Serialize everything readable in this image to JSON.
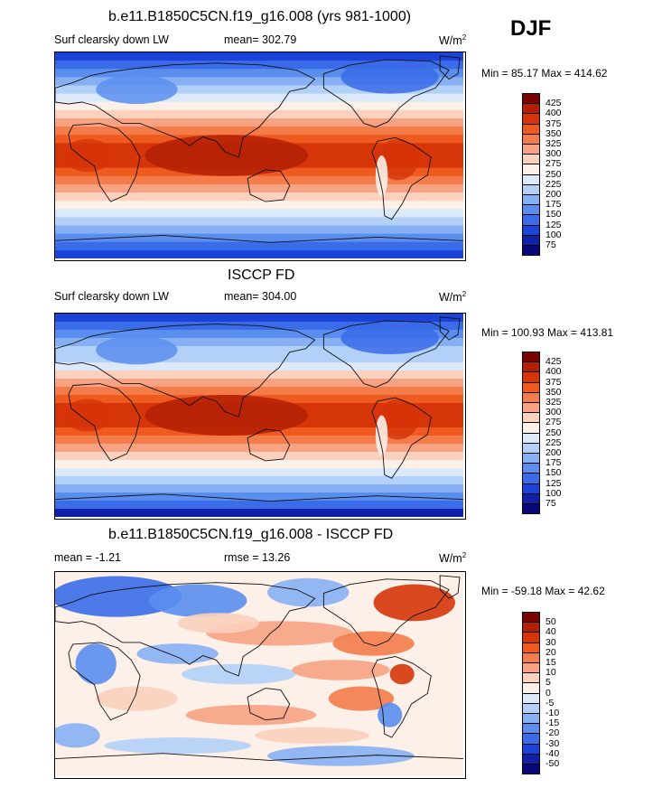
{
  "season": "DJF",
  "panels": [
    {
      "title": "b.e11.B1850C5CN.f19_g16.008 (yrs 981-1000)",
      "left_label": "Surf clearsky down LW",
      "center_label": "mean= 302.79",
      "units": "W/m",
      "units_exp": "2",
      "minmax": "Min =  85.17 Max = 414.62",
      "colorbar_labels": [
        "425",
        "400",
        "375",
        "350",
        "325",
        "300",
        "275",
        "250",
        "225",
        "200",
        "175",
        "150",
        "125",
        "100",
        "75"
      ]
    },
    {
      "title": "ISCCP FD",
      "left_label": "Surf clearsky down LW",
      "center_label": "mean= 304.00",
      "units": "W/m",
      "units_exp": "2",
      "minmax": "Min = 100.93 Max = 413.81",
      "colorbar_labels": [
        "425",
        "400",
        "375",
        "350",
        "325",
        "300",
        "275",
        "250",
        "225",
        "200",
        "175",
        "150",
        "125",
        "100",
        "75"
      ]
    },
    {
      "title": "b.e11.B1850C5CN.f19_g16.008 - ISCCP FD",
      "left_label": "mean =  -1.21",
      "center_label": "rmse =  13.26",
      "units": "W/m",
      "units_exp": "2",
      "minmax": "Min = -59.18 Max =  42.62",
      "colorbar_labels": [
        "50",
        "40",
        "30",
        "20",
        "15",
        "10",
        "5",
        "0",
        "-5",
        "-10",
        "-15",
        "-20",
        "-30",
        "-40",
        "-50"
      ]
    }
  ],
  "colorbar_colors": [
    "#7a0403",
    "#b31e05",
    "#d63509",
    "#ef5a1e",
    "#f47c4a",
    "#f7a283",
    "#fbd0bc",
    "#fdf0e8",
    "#dbe9fb",
    "#b2d0f8",
    "#86b0f3",
    "#5a8eee",
    "#3a6be9",
    "#1c43d8",
    "#1020a8",
    "#08087a"
  ],
  "chart_data": [
    {
      "type": "heatmap",
      "title": "b.e11.B1850C5CN.f19_g16.008 (yrs 981-1000)",
      "variable": "Surf clearsky down LW",
      "season": "DJF",
      "units": "W/m2",
      "mean": 302.79,
      "min": 85.17,
      "max": 414.62,
      "levels": [
        75,
        100,
        125,
        150,
        175,
        200,
        225,
        250,
        275,
        300,
        325,
        350,
        375,
        400,
        425
      ]
    },
    {
      "type": "heatmap",
      "title": "ISCCP FD",
      "variable": "Surf clearsky down LW",
      "season": "DJF",
      "units": "W/m2",
      "mean": 304.0,
      "min": 100.93,
      "max": 413.81,
      "levels": [
        75,
        100,
        125,
        150,
        175,
        200,
        225,
        250,
        275,
        300,
        325,
        350,
        375,
        400,
        425
      ]
    },
    {
      "type": "heatmap",
      "title": "b.e11.B1850C5CN.f19_g16.008 - ISCCP FD",
      "variable": "Surf clearsky down LW difference",
      "season": "DJF",
      "units": "W/m2",
      "mean": -1.21,
      "rmse": 13.26,
      "min": -59.18,
      "max": 42.62,
      "levels": [
        -50,
        -40,
        -30,
        -20,
        -15,
        -10,
        -5,
        0,
        5,
        10,
        15,
        20,
        30,
        40,
        50
      ]
    }
  ]
}
